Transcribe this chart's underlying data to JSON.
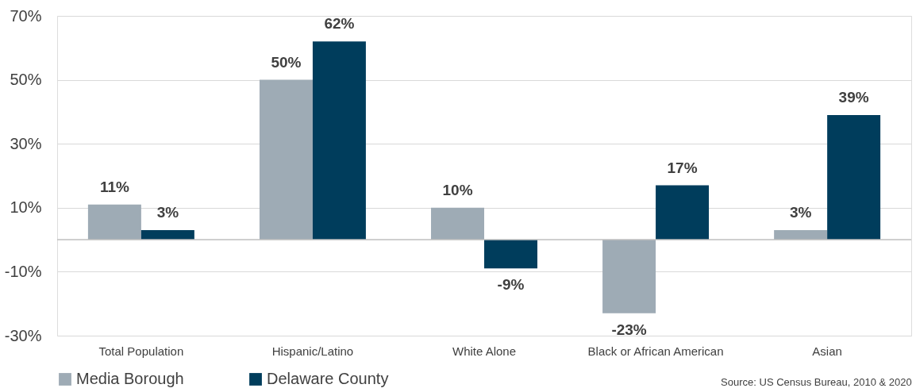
{
  "chart_data": {
    "type": "bar",
    "categories": [
      "Total Population",
      "Hispanic/Latino",
      "White Alone",
      "Black or African American",
      "Asian"
    ],
    "series": [
      {
        "name": "Media Borough",
        "color": "#9eabb5",
        "values": [
          11,
          50,
          10,
          -23,
          3
        ],
        "value_labels": [
          "11%",
          "50%",
          "10%",
          "-23%",
          "3%"
        ]
      },
      {
        "name": "Delaware County",
        "color": "#003d5c",
        "values": [
          3,
          62,
          -9,
          17,
          39
        ],
        "value_labels": [
          "3%",
          "62%",
          "-9%",
          "17%",
          "39%"
        ]
      }
    ],
    "ylim": [
      -30,
      70
    ],
    "yticks": [
      {
        "value": -30,
        "label": "-30%"
      },
      {
        "value": -10,
        "label": "-10%"
      },
      {
        "value": 10,
        "label": "10%"
      },
      {
        "value": 30,
        "label": "30%"
      },
      {
        "value": 50,
        "label": "50%"
      },
      {
        "value": 70,
        "label": "70%"
      }
    ],
    "grid": "y",
    "legend": "bottom left",
    "ref_lines": [
      {
        "axis": "y",
        "value": 0,
        "color": "#bfbfbf"
      }
    ],
    "annotations": [
      "Source: US Census Bureau, 2010 & 2020"
    ]
  }
}
